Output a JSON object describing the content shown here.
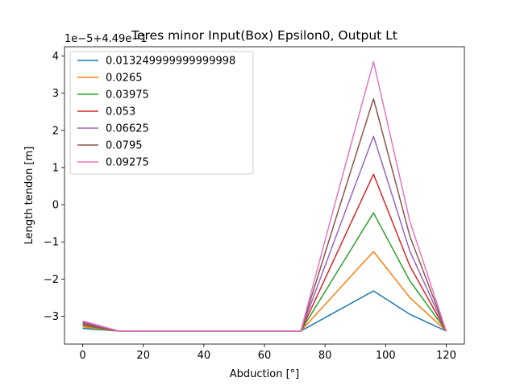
{
  "chart_data": {
    "type": "line",
    "title": "Teres minor Input(Box) Epsilon0, Output Lt",
    "xlabel": "Abduction [°]",
    "ylabel": "Length tendon [m]",
    "y_offset_label": "1e−5+4.49e−1",
    "xlim": [
      -6,
      126
    ],
    "ylim": [
      -3.75,
      4.25
    ],
    "x_ticks": [
      0,
      20,
      40,
      60,
      80,
      100,
      120
    ],
    "y_ticks": [
      -3,
      -2,
      -1,
      0,
      1,
      2,
      3,
      4
    ],
    "x_tick_labels": [
      "0",
      "20",
      "40",
      "60",
      "80",
      "100",
      "120"
    ],
    "y_tick_labels": [
      "−3",
      "−2",
      "−1",
      "0",
      "1",
      "2",
      "3",
      "4"
    ],
    "grid": false,
    "legend_position": "upper-left",
    "x": [
      0,
      12,
      24,
      36,
      48,
      60,
      72,
      84,
      96,
      108,
      120
    ],
    "series": [
      {
        "name": "0.013249999999999998",
        "color": "#1f77b4",
        "values": [
          -3.33,
          -3.4,
          -3.4,
          -3.4,
          -3.4,
          -3.4,
          -3.4,
          -2.86,
          -2.32,
          -2.95,
          -3.4
        ]
      },
      {
        "name": "0.0265",
        "color": "#ff7f0e",
        "values": [
          -3.29,
          -3.4,
          -3.4,
          -3.4,
          -3.4,
          -3.4,
          -3.4,
          -2.33,
          -1.26,
          -2.5,
          -3.4
        ]
      },
      {
        "name": "0.03975",
        "color": "#2ca02c",
        "values": [
          -3.25,
          -3.4,
          -3.4,
          -3.4,
          -3.4,
          -3.4,
          -3.4,
          -1.81,
          -0.22,
          -2.05,
          -3.4
        ]
      },
      {
        "name": "0.053",
        "color": "#d62728",
        "values": [
          -3.22,
          -3.4,
          -3.4,
          -3.4,
          -3.4,
          -3.4,
          -3.4,
          -1.29,
          0.82,
          -1.65,
          -3.4
        ]
      },
      {
        "name": "0.06625",
        "color": "#9467bd",
        "values": [
          -3.19,
          -3.4,
          -3.4,
          -3.4,
          -3.4,
          -3.4,
          -3.4,
          -0.77,
          1.84,
          -1.25,
          -3.4
        ]
      },
      {
        "name": "0.0795",
        "color": "#8c564b",
        "values": [
          -3.16,
          -3.4,
          -3.4,
          -3.4,
          -3.4,
          -3.4,
          -3.4,
          -0.26,
          2.85,
          -0.85,
          -3.4
        ]
      },
      {
        "name": "0.09275",
        "color": "#e377c2",
        "values": [
          -3.13,
          -3.4,
          -3.4,
          -3.4,
          -3.4,
          -3.4,
          -3.4,
          0.25,
          3.85,
          -0.45,
          -3.4
        ]
      }
    ]
  }
}
